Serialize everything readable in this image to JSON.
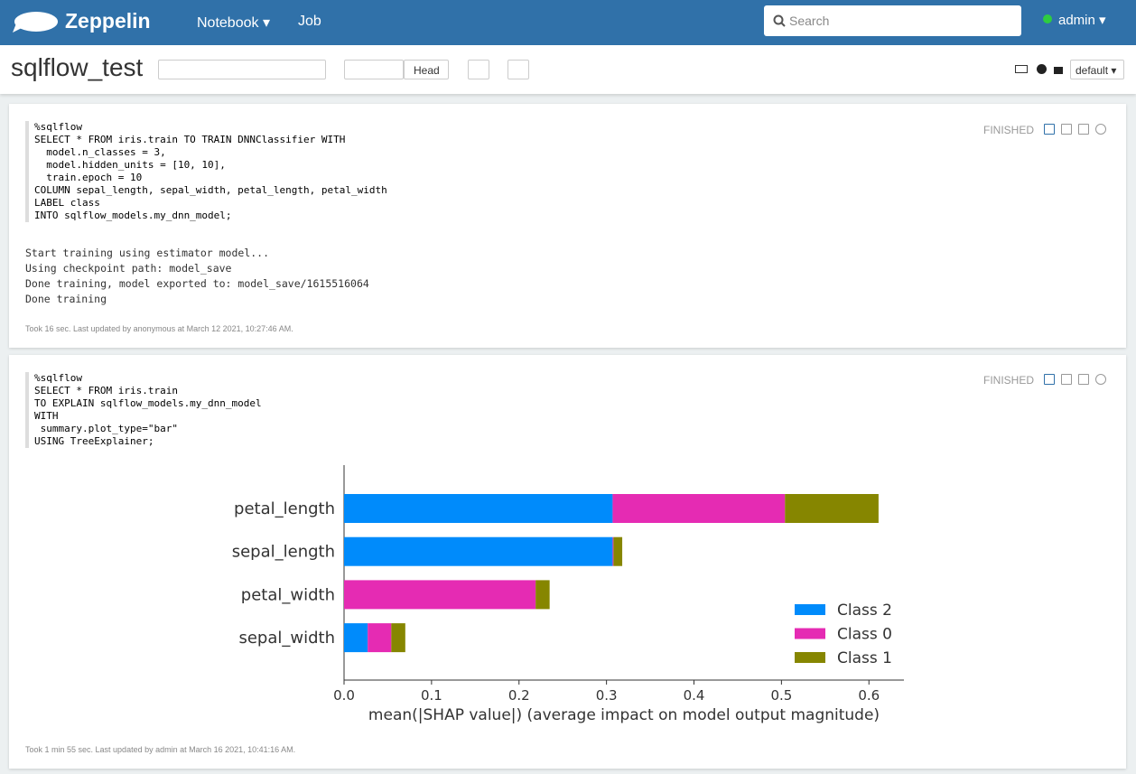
{
  "navbar": {
    "brand": "Zeppelin",
    "menu": [
      "Notebook",
      "Job"
    ],
    "search_placeholder": "Search",
    "user": "admin"
  },
  "notebook": {
    "title": "sqlflow_test",
    "head_button": "Head",
    "interpreter_button": "default"
  },
  "paragraphs": [
    {
      "status": "FINISHED",
      "code": [
        "%sqlflow",
        "SELECT * FROM iris.train TO TRAIN DNNClassifier WITH",
        "  model.n_classes = 3,",
        "  model.hidden_units = [10, 10],",
        "  train.epoch = 10",
        "COLUMN sepal_length, sepal_width, petal_length, petal_width",
        "LABEL class",
        "INTO sqlflow_models.my_dnn_model;"
      ],
      "output": [
        "Start training using estimator model...",
        "Using checkpoint path: model_save",
        "Done training, model exported to: model_save/1615516064",
        "Done training"
      ],
      "footer": "Took 16 sec. Last updated by anonymous at March 12 2021, 10:27:46 AM."
    },
    {
      "status": "FINISHED",
      "code": [
        "%sqlflow",
        "SELECT * FROM iris.train",
        "TO EXPLAIN sqlflow_models.my_dnn_model",
        "WITH",
        " summary.plot_type=\"bar\"",
        "USING TreeExplainer;"
      ],
      "footer": "Took 1 min 55 sec. Last updated by admin at March 16 2021, 10:41:16 AM."
    }
  ],
  "chart_data": {
    "type": "stacked_barh",
    "categories": [
      "petal_length",
      "sepal_length",
      "petal_width",
      "sepal_width"
    ],
    "series": [
      {
        "name": "Class 2",
        "color": "#008bfb",
        "values": [
          0.307,
          0.307,
          0,
          0.027
        ]
      },
      {
        "name": "Class 0",
        "color": "#e52bb3",
        "values": [
          0.197,
          0.001,
          0.219,
          0.027
        ]
      },
      {
        "name": "Class 1",
        "color": "#868600",
        "values": [
          0.107,
          0.01,
          0.016,
          0.016
        ]
      }
    ],
    "xlabel": "mean(|SHAP value|) (average impact on model output magnitude)",
    "xlim": [
      0,
      0.64
    ],
    "xticks": [
      {
        "value": 0,
        "label": "0.0"
      },
      0.1,
      0.2,
      0.3,
      0.4,
      0.5,
      0.6
    ],
    "legend": "lower right",
    "grid": false
  }
}
